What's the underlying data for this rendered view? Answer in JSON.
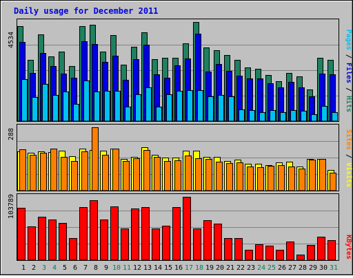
{
  "chart_data": [
    {
      "type": "bar",
      "title": "Daily usage for December 2011",
      "categories": [
        "1",
        "2",
        "3",
        "4",
        "5",
        "6",
        "7",
        "8",
        "9",
        "10",
        "11",
        "12",
        "13",
        "14",
        "15",
        "16",
        "17",
        "18",
        "19",
        "20",
        "21",
        "22",
        "23",
        "24",
        "25",
        "26",
        "27",
        "28",
        "29",
        "30",
        "31"
      ],
      "weekend_days": [
        "3",
        "4",
        "10",
        "11",
        "17",
        "18",
        "24",
        "25",
        "31"
      ],
      "ylim": [
        0,
        4534
      ],
      "tick_label": "4534",
      "series": [
        {
          "name": "Hits",
          "color": "#208060",
          "values": [
            4344,
            2787,
            3955,
            2958,
            3177,
            2508,
            4353,
            4421,
            3192,
            3939,
            2596,
            3409,
            4055,
            2825,
            2895,
            2912,
            3563,
            4534,
            3379,
            3234,
            3021,
            2787,
            2461,
            2392,
            2102,
            1839,
            2210,
            2059,
            1457,
            2881,
            2811
          ]
        },
        {
          "name": "Files",
          "color": "#0000e0",
          "values": [
            3636,
            2213,
            3124,
            2531,
            2187,
            1988,
            3647,
            3511,
            2709,
            3006,
            1891,
            2837,
            3509,
            2137,
            1988,
            2542,
            2859,
            3993,
            2271,
            2601,
            2302,
            2080,
            1961,
            1945,
            1730,
            1547,
            1786,
            1555,
            1120,
            2187,
            2146
          ]
        },
        {
          "name": "Pages",
          "color": "#00c0f0",
          "values": [
            1930,
            1089,
            1689,
            1185,
            1355,
            775,
            1864,
            1344,
            1380,
            1371,
            653,
            1225,
            1542,
            657,
            1234,
            1384,
            1415,
            1415,
            1142,
            1208,
            1121,
            551,
            518,
            402,
            513,
            404,
            503,
            474,
            308,
            705,
            395
          ]
        }
      ]
    },
    {
      "type": "bar",
      "categories": [
        "1",
        "2",
        "3",
        "4",
        "5",
        "6",
        "7",
        "8",
        "9",
        "10",
        "11",
        "12",
        "13",
        "14",
        "15",
        "16",
        "17",
        "18",
        "19",
        "20",
        "21",
        "22",
        "23",
        "24",
        "25",
        "26",
        "27",
        "28",
        "29",
        "30",
        "31"
      ],
      "ylim": [
        0,
        288
      ],
      "tick_label": "288",
      "series": [
        {
          "name": "Visits",
          "color": "#ffff00",
          "values": [
            177,
            172,
            179,
            176,
            183,
            157,
            191,
            185,
            180,
            191,
            144,
            154,
            198,
            162,
            150,
            150,
            180,
            181,
            152,
            152,
            134,
            140,
            122,
            121,
            116,
            127,
            130,
            111,
            144,
            143,
            95
          ]
        },
        {
          "name": "Sites",
          "color": "#ff8000",
          "values": [
            189,
            163,
            172,
            190,
            154,
            135,
            178,
            288,
            163,
            190,
            136,
            147,
            184,
            153,
            134,
            137,
            160,
            148,
            144,
            132,
            126,
            128,
            109,
            106,
            112,
            115,
            109,
            99,
            142,
            144,
            81
          ]
        }
      ]
    },
    {
      "type": "bar",
      "categories": [
        "1",
        "2",
        "3",
        "4",
        "5",
        "6",
        "7",
        "8",
        "9",
        "10",
        "11",
        "12",
        "13",
        "14",
        "15",
        "16",
        "17",
        "18",
        "19",
        "20",
        "21",
        "22",
        "23",
        "24",
        "25",
        "26",
        "27",
        "28",
        "29",
        "30",
        "31"
      ],
      "ylim": [
        0,
        103789
      ],
      "tick_label": "103789",
      "series": [
        {
          "name": "KBytes",
          "color": "#ff0000",
          "values": [
            85830,
            55512,
            71034,
            66297,
            61049,
            35762,
            86911,
            98522,
            66971,
            88043,
            51802,
            84949,
            86383,
            51738,
            55926,
            86911,
            103789,
            52113,
            65541,
            60261,
            35762,
            35762,
            17394,
            25817,
            24055,
            17394,
            30072,
            8968,
            24983,
            37862,
            32624
          ]
        }
      ]
    }
  ]
}
